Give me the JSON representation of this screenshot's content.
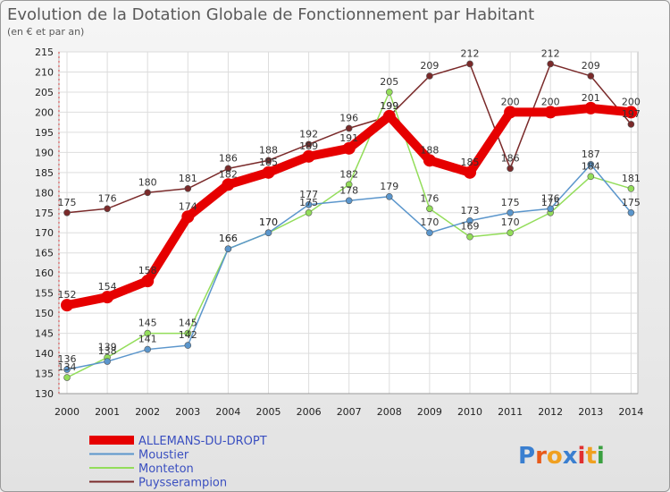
{
  "chart_data": {
    "type": "line",
    "title": "Evolution de la Dotation Globale de Fonctionnement par Habitant",
    "subtitle": "(en € et par an)",
    "xlabel": "",
    "ylabel": "",
    "ylim": [
      130,
      215
    ],
    "yticks": [
      130,
      135,
      140,
      145,
      150,
      155,
      160,
      165,
      170,
      175,
      180,
      185,
      190,
      195,
      200,
      205,
      210,
      215
    ],
    "categories": [
      "2000",
      "2001",
      "2002",
      "2003",
      "2004",
      "2005",
      "2006",
      "2007",
      "2008",
      "2009",
      "2010",
      "2011",
      "2012",
      "2013",
      "2014"
    ],
    "series": [
      {
        "name": "ALLEMANS-DU-DROPT",
        "color": "#e60000",
        "values": [
          152,
          154,
          158,
          174,
          182,
          185,
          189,
          191,
          199,
          188,
          185,
          200,
          200,
          201,
          200
        ]
      },
      {
        "name": "Moustier",
        "color": "#5b96cc",
        "values": [
          136,
          138,
          141,
          142,
          166,
          170,
          177,
          178,
          179,
          170,
          173,
          175,
          176,
          187,
          175
        ]
      },
      {
        "name": "Monteton",
        "color": "#93dd5a",
        "values": [
          134,
          139,
          145,
          145,
          166,
          170,
          175,
          182,
          205,
          176,
          169,
          170,
          175,
          184,
          181
        ]
      },
      {
        "name": "Puysserampion",
        "color": "#7a2a2a",
        "values": [
          175,
          176,
          180,
          181,
          186,
          188,
          192,
          196,
          199,
          209,
          212,
          186,
          212,
          209,
          197
        ]
      }
    ],
    "grid": true,
    "legend": "bottom-left"
  },
  "logo": {
    "text": "Proxiti"
  }
}
